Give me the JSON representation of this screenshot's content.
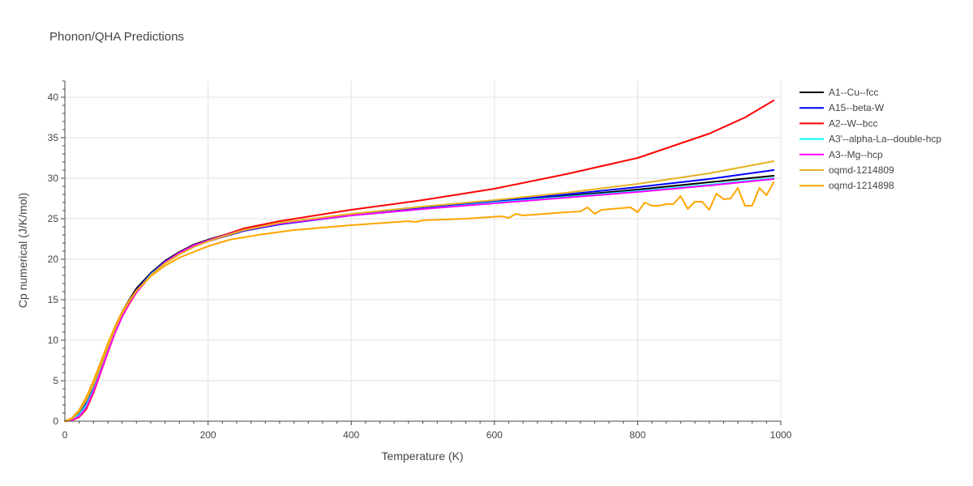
{
  "chart_data": {
    "type": "line",
    "title": "Phonon/QHA Predictions",
    "xlabel": "Temperature (K)",
    "ylabel": "Cp numerical (J/K/mol)",
    "xlim": [
      0,
      1000
    ],
    "ylim": [
      0,
      42
    ],
    "x_ticks": [
      0,
      200,
      400,
      600,
      800,
      1000
    ],
    "y_ticks": [
      0,
      5,
      10,
      15,
      20,
      25,
      30,
      35,
      40
    ],
    "grid": true,
    "legend_placement": "right",
    "series": [
      {
        "name": "A1--Cu--fcc",
        "color": "#000000",
        "x": [
          0,
          10,
          20,
          30,
          40,
          50,
          60,
          70,
          80,
          90,
          100,
          120,
          140,
          160,
          180,
          200,
          250,
          300,
          400,
          500,
          600,
          700,
          800,
          900,
          990
        ],
        "y": [
          0,
          0.3,
          1.0,
          2.3,
          4.4,
          6.8,
          9.2,
          11.5,
          13.5,
          15.0,
          16.4,
          18.3,
          19.8,
          20.9,
          21.8,
          22.4,
          23.7,
          24.4,
          25.4,
          26.2,
          27.0,
          27.8,
          28.6,
          29.5,
          30.3
        ]
      },
      {
        "name": "A15--beta-W",
        "color": "#0000ff",
        "x": [
          0,
          10,
          20,
          30,
          40,
          50,
          60,
          70,
          80,
          90,
          100,
          120,
          140,
          160,
          180,
          200,
          250,
          300,
          400,
          500,
          600,
          700,
          800,
          900,
          990
        ],
        "y": [
          0,
          0.2,
          0.9,
          2.2,
          4.2,
          6.5,
          9.0,
          11.3,
          13.3,
          14.9,
          16.2,
          18.2,
          19.7,
          20.8,
          21.6,
          22.2,
          23.5,
          24.3,
          25.4,
          26.3,
          27.1,
          28.0,
          28.9,
          29.9,
          31.0
        ]
      },
      {
        "name": "A2--W--bcc",
        "color": "#ff0000",
        "x": [
          0,
          10,
          20,
          30,
          40,
          50,
          60,
          70,
          80,
          90,
          100,
          120,
          140,
          160,
          180,
          200,
          250,
          300,
          400,
          500,
          600,
          700,
          800,
          900,
          950,
          990
        ],
        "y": [
          0,
          0.1,
          0.5,
          1.5,
          3.5,
          6.0,
          8.5,
          10.9,
          12.9,
          14.5,
          15.9,
          18.0,
          19.6,
          20.8,
          21.7,
          22.3,
          23.8,
          24.7,
          26.1,
          27.3,
          28.7,
          30.5,
          32.5,
          35.5,
          37.5,
          39.6
        ]
      },
      {
        "name": "A3'--alpha-La--double-hcp",
        "color": "#00ffff",
        "x": [
          0,
          10,
          20,
          30,
          40,
          50,
          60,
          70,
          80,
          90,
          100,
          120,
          140,
          160,
          180,
          200,
          250,
          300,
          400,
          500,
          600,
          700,
          800,
          900,
          990
        ],
        "y": [
          0,
          0.2,
          0.8,
          2.0,
          3.9,
          6.2,
          8.7,
          11.0,
          13.0,
          14.7,
          16.0,
          18.1,
          19.6,
          20.8,
          21.7,
          22.3,
          23.6,
          24.4,
          25.4,
          26.2,
          27.0,
          27.7,
          28.4,
          29.2,
          30.0
        ]
      },
      {
        "name": "A3--Mg--hcp",
        "color": "#ff00ff",
        "x": [
          0,
          10,
          20,
          30,
          40,
          50,
          60,
          70,
          80,
          90,
          100,
          120,
          140,
          160,
          180,
          200,
          250,
          300,
          400,
          500,
          600,
          700,
          800,
          900,
          990
        ],
        "y": [
          0,
          0.15,
          0.6,
          1.7,
          3.7,
          6.1,
          8.6,
          10.9,
          12.9,
          14.6,
          15.9,
          18.0,
          19.6,
          20.8,
          21.7,
          22.3,
          23.6,
          24.4,
          25.4,
          26.2,
          26.9,
          27.6,
          28.3,
          29.1,
          29.9
        ]
      },
      {
        "name": "oqmd-1214809",
        "color": "#e6b220",
        "x": [
          0,
          10,
          20,
          30,
          40,
          50,
          60,
          70,
          80,
          90,
          100,
          120,
          140,
          160,
          180,
          200,
          250,
          300,
          400,
          500,
          600,
          700,
          800,
          900,
          990
        ],
        "y": [
          0,
          0.3,
          1.2,
          2.6,
          4.5,
          6.8,
          9.2,
          11.4,
          13.3,
          14.8,
          16.1,
          18.0,
          19.5,
          20.6,
          21.5,
          22.2,
          23.6,
          24.5,
          25.6,
          26.5,
          27.3,
          28.2,
          29.3,
          30.6,
          32.1
        ]
      },
      {
        "name": "oqmd-1214898",
        "color": "#ffa500",
        "x": [
          0,
          10,
          20,
          30,
          40,
          50,
          60,
          70,
          80,
          90,
          100,
          120,
          140,
          160,
          180,
          200,
          230,
          270,
          320,
          400,
          480,
          490,
          500,
          560,
          610,
          620,
          630,
          640,
          700,
          720,
          730,
          740,
          750,
          790,
          800,
          810,
          820,
          830,
          840,
          850,
          860,
          870,
          880,
          890,
          900,
          910,
          920,
          930,
          940,
          950,
          960,
          970,
          980,
          990
        ],
        "y": [
          0,
          0.4,
          1.4,
          3.0,
          5.0,
          7.3,
          9.6,
          11.7,
          13.5,
          14.9,
          16.1,
          17.9,
          19.2,
          20.2,
          20.9,
          21.6,
          22.4,
          23.0,
          23.6,
          24.2,
          24.7,
          24.6,
          24.8,
          25.0,
          25.3,
          25.1,
          25.6,
          25.4,
          25.8,
          25.9,
          26.4,
          25.6,
          26.1,
          26.4,
          25.8,
          27.0,
          26.6,
          26.6,
          26.8,
          26.8,
          27.8,
          26.2,
          27.1,
          27.1,
          26.1,
          28.1,
          27.4,
          27.5,
          28.8,
          26.6,
          26.6,
          28.8,
          27.9,
          29.5
        ]
      }
    ]
  }
}
